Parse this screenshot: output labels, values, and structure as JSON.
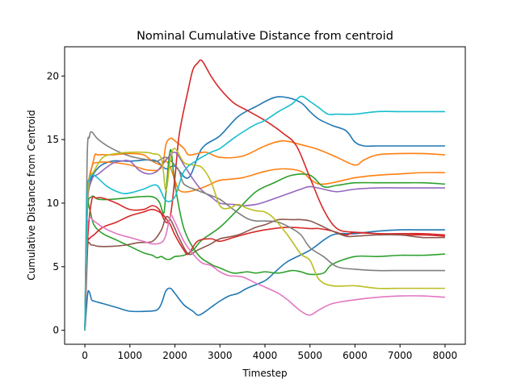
{
  "chart_data": {
    "type": "line",
    "title": "Nominal Cumulative Distance from centroid",
    "xlabel": "Timestep",
    "ylabel": "Cumulative Distance from Centroid",
    "xlim": [
      -450,
      8450
    ],
    "ylim": [
      -1.1,
      22.3
    ],
    "xticks": [
      0,
      1000,
      2000,
      3000,
      4000,
      5000,
      6000,
      7000,
      8000
    ],
    "yticks": [
      0,
      5,
      10,
      15,
      20
    ],
    "grid": false,
    "legend": "none",
    "series": [
      {
        "color": "#1f77b4",
        "x": [
          0,
          60,
          100,
          150,
          200,
          400,
          700,
          1000,
          1400,
          1600,
          1700,
          1800,
          1900,
          2000,
          2200,
          2400,
          2500,
          2600,
          2800,
          3000,
          3200,
          3400,
          3600,
          4000,
          4200,
          4500,
          5000,
          5500,
          6000,
          6500,
          7000,
          7500,
          8000
        ],
        "y": [
          0,
          2.8,
          3.0,
          2.4,
          2.3,
          2.1,
          1.8,
          1.5,
          1.5,
          1.6,
          2.1,
          3.1,
          3.3,
          2.9,
          2.0,
          1.5,
          1.2,
          1.3,
          1.8,
          2.3,
          2.7,
          2.9,
          3.3,
          3.9,
          4.5,
          5.4,
          6.3,
          7.5,
          7.6,
          7.8,
          7.9,
          7.9,
          7.9
        ]
      },
      {
        "color": "#1f77b4",
        "x": [
          0,
          50,
          100,
          300,
          600,
          1000,
          1400,
          1600,
          1800,
          2000,
          2300,
          2600,
          3000,
          3400,
          3800,
          4200,
          4500,
          4800,
          5000,
          5200,
          5500,
          5800,
          6000,
          6200,
          6500,
          7000,
          7500,
          8000
        ],
        "y": [
          0,
          9.0,
          11.5,
          12.8,
          13.3,
          13.3,
          13.4,
          13.3,
          12.7,
          12.9,
          12.0,
          14.3,
          15.3,
          16.8,
          17.6,
          18.3,
          18.3,
          17.9,
          17.2,
          16.6,
          16.1,
          15.7,
          14.8,
          14.5,
          14.5,
          14.5,
          14.5,
          14.5
        ]
      },
      {
        "color": "#ff7f0e",
        "x": [
          0,
          50,
          150,
          300,
          600,
          1000,
          1400,
          1700,
          1800,
          1900,
          2000,
          2200,
          2300,
          2500,
          2700,
          3000,
          3500,
          4000,
          4400,
          4800,
          5200,
          5600,
          6000,
          6200,
          6500,
          7000,
          7500,
          8000
        ],
        "y": [
          0,
          10.0,
          12.8,
          13.2,
          13.2,
          13.0,
          12.6,
          12.8,
          14.6,
          15.1,
          14.9,
          14.3,
          13.8,
          13.9,
          14.0,
          13.6,
          13.7,
          14.5,
          14.9,
          14.6,
          14.2,
          13.6,
          13.0,
          13.4,
          13.8,
          13.9,
          13.9,
          13.8
        ]
      },
      {
        "color": "#ff7f0e",
        "x": [
          0,
          60,
          200,
          300,
          600,
          1000,
          1300,
          1500,
          1700,
          1800,
          1900,
          2000,
          2100,
          2300,
          2600,
          2800,
          3000,
          3500,
          4000,
          4400,
          4800,
          5000,
          5200,
          5500,
          6000,
          6500,
          7000,
          7500,
          8000
        ],
        "y": [
          0,
          10.0,
          13.5,
          13.8,
          13.8,
          13.9,
          13.8,
          13.3,
          13.0,
          13.3,
          12.8,
          11.8,
          11.0,
          10.9,
          11.2,
          11.5,
          11.8,
          12.0,
          12.5,
          12.7,
          12.5,
          11.9,
          11.5,
          11.6,
          12.0,
          12.2,
          12.3,
          12.4,
          12.4
        ]
      },
      {
        "color": "#2ca02c",
        "x": [
          0,
          50,
          100,
          200,
          400,
          700,
          1000,
          1300,
          1500,
          1600,
          1700,
          1800,
          1900,
          2000,
          2200,
          2400,
          2600,
          3000,
          3400,
          3800,
          4200,
          4600,
          5000,
          5300,
          5600,
          6000,
          6500,
          7000,
          7500,
          8000
        ],
        "y": [
          0,
          9.4,
          9.6,
          8.3,
          7.6,
          7.1,
          6.6,
          6.1,
          5.9,
          5.7,
          5.8,
          5.6,
          5.6,
          5.8,
          5.9,
          6.3,
          7.1,
          8.1,
          9.5,
          10.9,
          11.6,
          12.2,
          12.2,
          11.3,
          11.4,
          11.6,
          11.6,
          11.6,
          11.6,
          11.5
        ]
      },
      {
        "color": "#2ca02c",
        "x": [
          0,
          50,
          150,
          300,
          600,
          900,
          1200,
          1500,
          1650,
          1750,
          1800,
          1900,
          2000,
          2200,
          2500,
          2800,
          3000,
          3300,
          3600,
          3800,
          4000,
          4300,
          4600,
          4800,
          5000,
          5300,
          5500,
          6000,
          6500,
          7000,
          7500,
          8000
        ],
        "y": [
          0,
          9.1,
          10.5,
          10.3,
          10.3,
          10.4,
          10.5,
          10.5,
          10.1,
          9.2,
          10.8,
          14.2,
          11.5,
          8.0,
          6.0,
          5.2,
          4.9,
          4.5,
          4.6,
          4.5,
          4.6,
          4.5,
          4.7,
          4.6,
          4.4,
          4.5,
          5.2,
          5.8,
          5.8,
          5.9,
          5.9,
          6.0
        ]
      },
      {
        "color": "#d62728",
        "x": [
          0,
          60,
          150,
          250,
          400,
          700,
          1000,
          1300,
          1500,
          1650,
          1800,
          1900,
          2000,
          2100,
          2300,
          2400,
          2500,
          2600,
          2800,
          3000,
          3300,
          3600,
          4000,
          4400,
          4700,
          5000,
          5300,
          5600,
          6000,
          6500,
          7000,
          7500,
          8000
        ],
        "y": [
          0,
          7.0,
          10.2,
          10.4,
          10.4,
          10.0,
          9.5,
          9.5,
          9.8,
          9.5,
          8.5,
          9.0,
          12.0,
          15.5,
          19.0,
          20.5,
          21.0,
          21.2,
          20.0,
          19.0,
          17.9,
          17.3,
          16.5,
          15.5,
          14.5,
          12.0,
          9.5,
          8.0,
          7.7,
          7.6,
          7.5,
          7.5,
          7.4
        ]
      },
      {
        "color": "#d62728",
        "x": [
          0,
          60,
          100,
          200,
          400,
          700,
          1000,
          1300,
          1500,
          1700,
          1800,
          1900,
          2000,
          2200,
          2300,
          2500,
          2800,
          3000,
          3300,
          3600,
          4000,
          4500,
          5000,
          5200,
          5500,
          5800,
          6000,
          6500,
          7000,
          7500,
          8000
        ],
        "y": [
          0,
          6.5,
          7.2,
          7.5,
          8.1,
          8.5,
          9.0,
          9.3,
          9.5,
          9.2,
          8.8,
          8.3,
          7.5,
          6.3,
          6.0,
          7.0,
          7.2,
          7.0,
          7.3,
          7.6,
          7.9,
          8.1,
          8.0,
          8.0,
          7.8,
          7.5,
          7.7,
          7.6,
          7.6,
          7.6,
          7.5
        ]
      },
      {
        "color": "#9467bd",
        "x": [
          0,
          50,
          150,
          300,
          600,
          800,
          1000,
          1200,
          1400,
          1600,
          1800,
          2000,
          2200,
          2400,
          2600,
          2800,
          3000,
          3300,
          3500,
          3800,
          4000,
          4400,
          4800,
          5000,
          5300,
          5600,
          6000,
          6500,
          7000,
          7500,
          8000
        ],
        "y": [
          0,
          9.5,
          11.8,
          12.3,
          13.1,
          13.3,
          13.3,
          12.6,
          12.3,
          12.5,
          13.4,
          14.0,
          13.0,
          11.9,
          11.0,
          10.5,
          10.0,
          9.9,
          9.8,
          9.9,
          10.1,
          10.6,
          11.1,
          11.3,
          11.1,
          10.9,
          11.1,
          11.2,
          11.2,
          11.2,
          11.2
        ]
      },
      {
        "color": "#8c564b",
        "x": [
          0,
          50,
          150,
          300,
          600,
          900,
          1200,
          1500,
          1700,
          1800,
          1900,
          2000,
          2100,
          2300,
          2500,
          2800,
          3000,
          3400,
          3800,
          4000,
          4300,
          4600,
          4800,
          5000,
          5200,
          5500,
          5800,
          6000,
          6500,
          7000,
          7500,
          8000
        ],
        "y": [
          0,
          6.3,
          6.7,
          6.6,
          6.6,
          6.7,
          6.9,
          7.0,
          7.9,
          8.9,
          8.7,
          8.0,
          7.2,
          6.0,
          6.3,
          6.8,
          7.2,
          7.5,
          8.1,
          8.3,
          8.7,
          8.7,
          8.7,
          8.6,
          8.3,
          7.8,
          7.4,
          7.4,
          7.5,
          7.5,
          7.3,
          7.3
        ]
      },
      {
        "color": "#e377c2",
        "x": [
          0,
          50,
          100,
          200,
          400,
          700,
          1000,
          1300,
          1500,
          1700,
          1800,
          1900,
          2000,
          2200,
          2400,
          2600,
          2800,
          3000,
          3200,
          3500,
          3800,
          4000,
          4300,
          4500,
          4800,
          5000,
          5200,
          5500,
          6000,
          6500,
          7000,
          7500,
          8000
        ],
        "y": [
          0,
          7.5,
          8.8,
          8.6,
          8.1,
          7.6,
          7.3,
          7.0,
          6.8,
          6.9,
          7.5,
          9.0,
          8.5,
          7.0,
          6.0,
          5.3,
          5.1,
          4.6,
          4.3,
          4.2,
          3.7,
          3.4,
          2.9,
          2.4,
          1.5,
          1.2,
          1.6,
          2.1,
          2.4,
          2.6,
          2.7,
          2.7,
          2.6
        ]
      },
      {
        "color": "#7f7f7f",
        "x": [
          0,
          50,
          100,
          150,
          300,
          600,
          1000,
          1400,
          1600,
          1800,
          2000,
          2100,
          2200,
          2500,
          2800,
          3000,
          3300,
          3600,
          3800,
          4000,
          4300,
          4600,
          4800,
          5000,
          5300,
          5600,
          6000,
          6500,
          7000,
          7500,
          8000
        ],
        "y": [
          0,
          13.5,
          15.2,
          15.6,
          15.0,
          14.3,
          13.7,
          13.4,
          13.3,
          13.6,
          13.0,
          12.5,
          11.5,
          11.0,
          10.6,
          10.3,
          9.5,
          8.8,
          8.6,
          8.6,
          8.5,
          8.0,
          7.5,
          6.5,
          5.8,
          5.0,
          4.8,
          4.7,
          4.7,
          4.7,
          4.7
        ]
      },
      {
        "color": "#bcbd22",
        "x": [
          0,
          50,
          100,
          200,
          400,
          700,
          1000,
          1300,
          1500,
          1700,
          1800,
          1900,
          2000,
          2200,
          2400,
          2600,
          2800,
          3000,
          3200,
          3400,
          3600,
          3800,
          4000,
          4200,
          4500,
          4800,
          5000,
          5200,
          5500,
          6000,
          6500,
          7000,
          7500,
          8000
        ],
        "y": [
          0,
          9.5,
          11.8,
          12.5,
          13.6,
          13.9,
          14.0,
          14.0,
          13.9,
          13.5,
          11.0,
          13.5,
          14.3,
          13.2,
          13.0,
          12.8,
          11.7,
          9.8,
          9.6,
          9.9,
          9.6,
          9.4,
          9.3,
          8.8,
          7.5,
          6.0,
          5.5,
          4.0,
          3.5,
          3.5,
          3.3,
          3.3,
          3.3,
          3.3
        ]
      },
      {
        "color": "#17becf",
        "x": [
          0,
          50,
          100,
          200,
          500,
          800,
          1000,
          1300,
          1600,
          1800,
          2000,
          2200,
          2500,
          2800,
          3000,
          3300,
          3600,
          3800,
          4000,
          4300,
          4600,
          4800,
          5000,
          5200,
          5400,
          5600,
          6000,
          6500,
          7000,
          7500,
          8000
        ],
        "y": [
          0,
          10.5,
          11.8,
          12.2,
          11.3,
          10.8,
          10.8,
          11.1,
          11.4,
          10.2,
          10.5,
          12.5,
          13.4,
          14.0,
          14.3,
          15.1,
          15.8,
          16.2,
          16.5,
          17.2,
          17.8,
          18.4,
          18.0,
          17.5,
          17.0,
          17.0,
          17.0,
          17.2,
          17.2,
          17.2,
          17.2
        ]
      }
    ]
  }
}
